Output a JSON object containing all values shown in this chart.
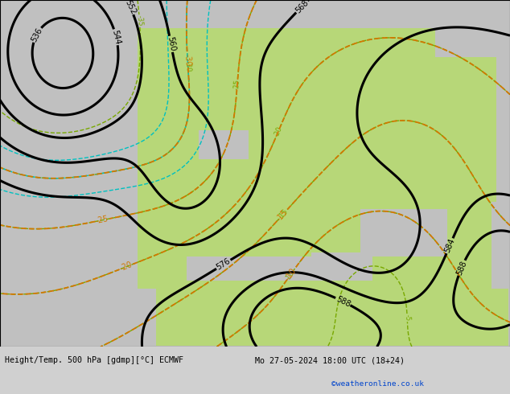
{
  "title_left": "Height/Temp. 500 hPa [gdmp][°C] ECMWF",
  "title_right": "Mo 27-05-2024 18:00 UTC (18+24)",
  "credit": "©weatheronline.co.uk",
  "bg_color": "#d0d0d0",
  "land_color_green": "#b8d878",
  "land_color_gray": "#c0c0c0",
  "contour_color_black": "#000000",
  "contour_color_orange": "#d07800",
  "contour_color_green": "#78a800",
  "contour_color_cyan": "#00c0c0",
  "figsize": [
    6.34,
    4.9
  ],
  "dpi": 100
}
